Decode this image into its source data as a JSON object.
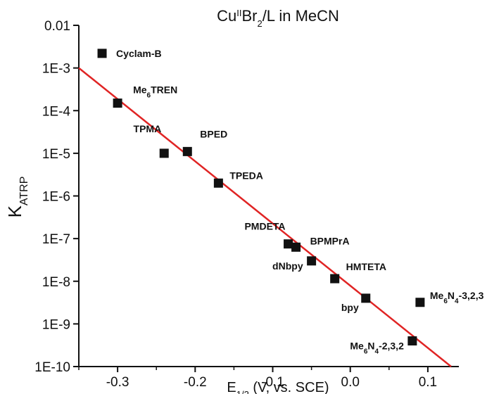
{
  "chart_data": {
    "type": "scatter",
    "title": {
      "main": "Cu",
      "sup": "II",
      "mid": "Br",
      "sub": "2",
      "tail": "/L  in  MeCN"
    },
    "xlabel": {
      "main": "E",
      "sub": "1/2",
      "tail": " (V, vs. SCE)"
    },
    "ylabel": {
      "main": "K",
      "sub": "ATRP"
    },
    "xlim": [
      -0.35,
      0.14
    ],
    "ylim": [
      1e-10,
      0.01
    ],
    "y_scale": "log",
    "x_ticks": [
      -0.3,
      -0.2,
      -0.1,
      0.0,
      0.1
    ],
    "x_tick_labels": [
      "-0.3",
      "-0.2",
      "-0.1",
      "0.0",
      "0.1"
    ],
    "y_ticks": [
      0.01,
      0.001,
      0.0001,
      1e-05,
      1e-06,
      1e-07,
      1e-08,
      1e-09,
      1e-10
    ],
    "y_tick_labels": [
      "0.01",
      "1E-3",
      "1E-4",
      "1E-5",
      "1E-6",
      "1E-7",
      "1E-8",
      "1E-9",
      "1E-10"
    ],
    "grid": false,
    "marker_color": "#111111",
    "fit_color": "#e02424",
    "points": [
      {
        "x": -0.32,
        "y": 0.0022,
        "label": "Cyclam-B",
        "sub": "",
        "after": ""
      },
      {
        "x": -0.3,
        "y": 0.00015,
        "label": "Me",
        "sub": "6",
        "after": "TREN"
      },
      {
        "x": -0.24,
        "y": 1e-05,
        "label": "TPMA",
        "sub": "",
        "after": ""
      },
      {
        "x": -0.21,
        "y": 1.1e-05,
        "label": "BPED",
        "sub": "",
        "after": ""
      },
      {
        "x": -0.17,
        "y": 2e-06,
        "label": "TPEDA",
        "sub": "",
        "after": ""
      },
      {
        "x": -0.08,
        "y": 7.5e-08,
        "label": "PMDETA",
        "sub": "",
        "after": ""
      },
      {
        "x": -0.07,
        "y": 6.3e-08,
        "label": "BPMPrA",
        "sub": "",
        "after": ""
      },
      {
        "x": -0.05,
        "y": 3e-08,
        "label": "dNbpy",
        "sub": "",
        "after": ""
      },
      {
        "x": -0.02,
        "y": 1.15e-08,
        "label": "HMTETA",
        "sub": "",
        "after": ""
      },
      {
        "x": 0.02,
        "y": 4e-09,
        "label": "bpy",
        "sub": "",
        "after": ""
      },
      {
        "x": 0.08,
        "y": 4e-10,
        "label": "Me",
        "sub": "6",
        "after": "N",
        "sub2": "4",
        "after2": "-2,3,2"
      },
      {
        "x": 0.09,
        "y": 3.2e-09,
        "label": "Me",
        "sub": "6",
        "after": "N",
        "sub2": "4",
        "after2": "-3,2,3"
      }
    ],
    "fit_line": {
      "x": [
        -0.35,
        0.13
      ],
      "y": [
        0.001,
        1e-10
      ]
    }
  }
}
